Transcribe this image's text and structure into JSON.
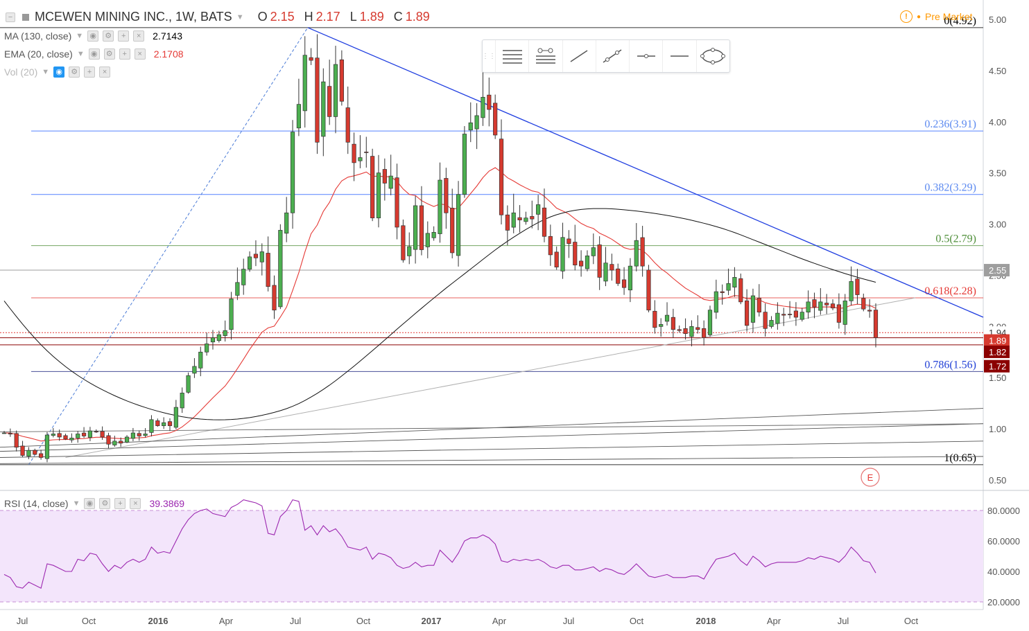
{
  "header": {
    "symbol": "MCEWEN MINING INC., 1W, BATS",
    "open_label": "O",
    "open": "2.15",
    "high_label": "H",
    "high": "2.17",
    "low_label": "L",
    "low": "1.89",
    "close_label": "C",
    "close": "1.89"
  },
  "indicators": {
    "ma": {
      "label": "MA (130, close)",
      "value": "2.7143",
      "color": "#000000"
    },
    "ema": {
      "label": "EMA (20, close)",
      "value": "2.1708",
      "color": "#e53935"
    },
    "vol": {
      "label": "Vol (20)"
    },
    "rsi": {
      "label": "RSI (14, close)",
      "value": "39.3869",
      "color": "#9c27b0"
    }
  },
  "status": {
    "pre_market": "Pre Market"
  },
  "toolbar": {
    "icons": [
      "lines-style-icon",
      "line-settings-icon",
      "trend-line-icon",
      "extended-line-icon",
      "horizontal-ray-icon",
      "horizontal-line-icon",
      "ellipse-icon"
    ]
  },
  "earnings_marker": "E",
  "colors": {
    "up": "#4caf50",
    "down": "#d63a2f",
    "fib_blue": "#2962ff",
    "fib_green": "#4f8f3a",
    "fib_red": "#e53935",
    "rsi_band": "#f3e5fb"
  },
  "chart_data": {
    "type": "candlestick",
    "title": "MCEWEN MINING INC., 1W, BATS",
    "ylim": [
      0.5,
      5.0
    ],
    "price_ticks": [
      "5.00",
      "4.50",
      "4.00",
      "3.50",
      "3.00",
      "2.50",
      "2.00",
      "1.50",
      "1.00",
      "0.50"
    ],
    "x_ticks": [
      "Jul",
      "Oct",
      "2016",
      "Apr",
      "Jul",
      "Oct",
      "2017",
      "Apr",
      "Jul",
      "Oct",
      "2018",
      "Apr",
      "Jul",
      "Oct"
    ],
    "price_labels": [
      "2.55",
      "1.94",
      "1.89",
      "1.82",
      "1.72"
    ],
    "fib_levels": [
      {
        "label": "0(4.92)",
        "price": 4.92
      },
      {
        "label": "0.236(3.91)",
        "price": 3.91
      },
      {
        "label": "0.382(3.29)",
        "price": 3.29
      },
      {
        "label": "0.5(2.79)",
        "price": 2.79
      },
      {
        "label": "0.618(2.28)",
        "price": 2.28
      },
      {
        "label": "0.786(1.56)",
        "price": 1.56
      },
      {
        "label": "1(0.65)",
        "price": 0.65
      }
    ],
    "candles_close": [
      0.96,
      0.95,
      0.82,
      0.74,
      0.79,
      0.75,
      0.72,
      0.94,
      0.95,
      0.92,
      0.9,
      0.91,
      0.95,
      0.93,
      0.98,
      0.97,
      0.92,
      0.85,
      0.88,
      0.86,
      0.92,
      0.96,
      0.93,
      0.95,
      1.09,
      1.03,
      1.06,
      1.03,
      1.21,
      1.35,
      1.52,
      1.61,
      1.75,
      1.83,
      1.89,
      1.92,
      1.96,
      2.27,
      2.43,
      2.56,
      2.68,
      2.67,
      2.73,
      2.39,
      2.16,
      2.94,
      3.11,
      3.9,
      4.17,
      4.65,
      4.6,
      3.8,
      4.39,
      4.05,
      4.56,
      4.2,
      3.8,
      3.6,
      3.65,
      3.7,
      3.06,
      3.5,
      3.4,
      3.47,
      2.97,
      2.65,
      2.78,
      3.18,
      2.75,
      2.91,
      2.92,
      3.43,
      3.11,
      2.72,
      3.29,
      3.88,
      3.99,
      4.06,
      4.24,
      4.12,
      3.87,
      3.09,
      2.94,
      3.11,
      3.04,
      3.06,
      3.05,
      3.19,
      2.88,
      2.7,
      2.58,
      2.87,
      2.81,
      2.6,
      2.59,
      2.69,
      2.77,
      2.48,
      2.62,
      2.55,
      2.42,
      2.38,
      2.59,
      2.84,
      2.59,
      2.16,
      1.99,
      2.02,
      2.11,
      1.97,
      1.96,
      1.93,
      2.0,
      1.97,
      1.89,
      2.16,
      2.34,
      2.33,
      2.42,
      2.48,
      2.24,
      2.01,
      2.3,
      2.14,
      1.98,
      2.06,
      2.13,
      2.11,
      2.12,
      2.09,
      2.14,
      2.24,
      2.19,
      2.24,
      2.21,
      2.18,
      2.04,
      2.25,
      2.44,
      2.31,
      2.17,
      2.15,
      1.89
    ],
    "rsi_ticks": [
      "80.0000",
      "60.0000",
      "40.0000",
      "20.0000"
    ],
    "rsi_ylim": [
      20,
      80
    ],
    "rsi_values": [
      38,
      36,
      30,
      29,
      33,
      31,
      29,
      45,
      44,
      42,
      40,
      40,
      48,
      47,
      52,
      51,
      45,
      40,
      44,
      42,
      46,
      48,
      46,
      48,
      56,
      52,
      53,
      52,
      60,
      68,
      74,
      78,
      80,
      81,
      78,
      77,
      76,
      82,
      84,
      87,
      86,
      85,
      83,
      65,
      64,
      76,
      80,
      87,
      86,
      67,
      70,
      64,
      70,
      66,
      68,
      63,
      56,
      55,
      54,
      56,
      48,
      52,
      51,
      49,
      44,
      42,
      43,
      46,
      43,
      44,
      44,
      54,
      50,
      46,
      52,
      60,
      62,
      62,
      64,
      62,
      58,
      47,
      46,
      48,
      47,
      48,
      47,
      48,
      46,
      43,
      42,
      44,
      44,
      41,
      41,
      42,
      43,
      40,
      42,
      41,
      39,
      38,
      41,
      45,
      41,
      37,
      36,
      37,
      38,
      36,
      36,
      36,
      37,
      37,
      35,
      42,
      48,
      49,
      50,
      52,
      47,
      44,
      50,
      47,
      43,
      45,
      46,
      46,
      46,
      46,
      47,
      49,
      48,
      50,
      49,
      48,
      46,
      50,
      56,
      52,
      47,
      46,
      39
    ],
    "ma130_label": "MA (130, close)",
    "ema20_label": "EMA (20, close)"
  }
}
